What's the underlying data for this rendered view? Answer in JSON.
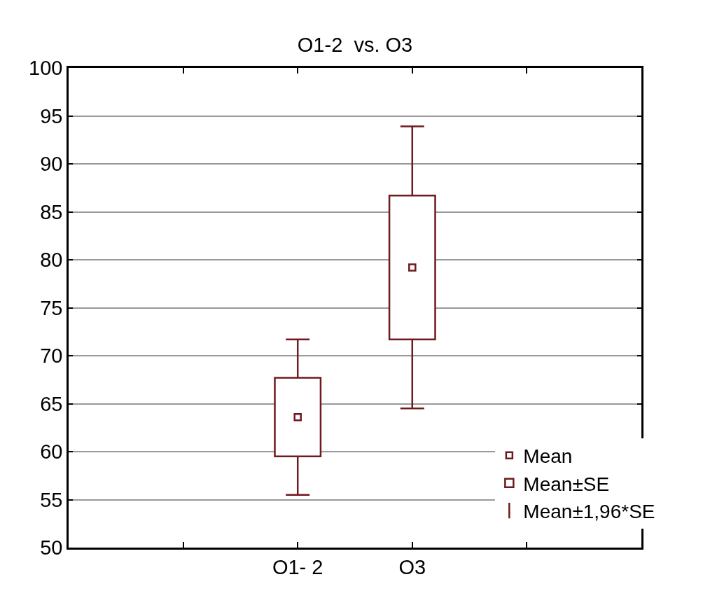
{
  "chart_data": {
    "type": "scatter",
    "title": "O1-2  vs. O3",
    "categories": [
      null,
      "O1- 2",
      "O3",
      null
    ],
    "series": [
      {
        "name": "Mean",
        "marker": "square",
        "color": "#6f1a1f",
        "values": [
          null,
          63.6,
          79.2,
          null
        ],
        "errors": [
          null,
          8.1,
          14.7,
          null
        ]
      },
      {
        "name": "Mean±SE",
        "type": "bar",
        "color": "#6f1a1f",
        "base": [
          null,
          59.5,
          71.7,
          null
        ],
        "values": [
          null,
          8.2,
          15.0,
          null
        ]
      },
      {
        "name": "Mean±1,96*SE",
        "type": "scatter",
        "marker": "none",
        "color": "#6f1a1f",
        "values": [
          null,
          null,
          null,
          null
        ]
      }
    ],
    "ylim": [
      50,
      100
    ],
    "yticks": [
      50,
      55,
      60,
      65,
      70,
      75,
      80,
      85,
      90,
      95,
      100
    ],
    "grid": "y",
    "legend": "bottom right"
  }
}
